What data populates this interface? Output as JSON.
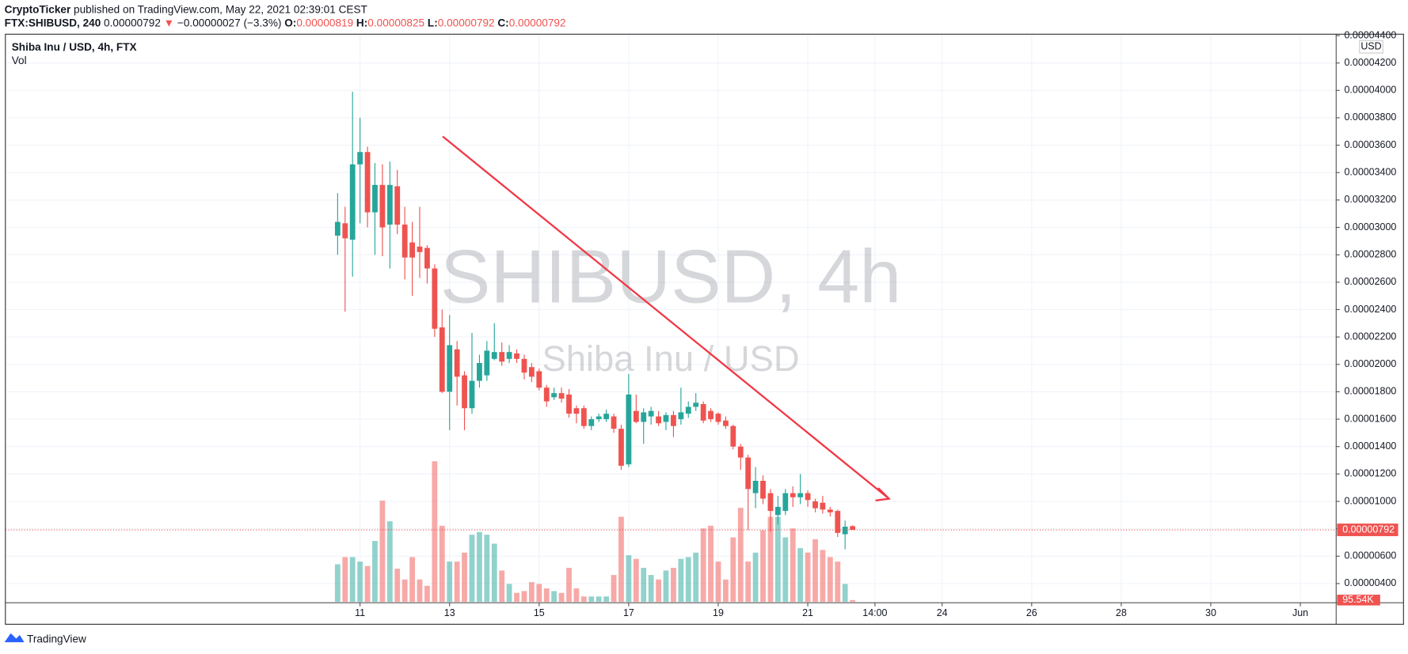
{
  "header": {
    "author": "CryptoTicker",
    "published": "published on TradingView.com, May 22, 2021 02:39:01 CEST",
    "symbol": "FTX:SHIBUSD, 240",
    "price": "0.00000792",
    "change_arrow": "▼",
    "change": "−0.00000027 (−3.3%)",
    "open_label": "O:",
    "open": "0.00000819",
    "high_label": "H:",
    "high": "0.00000825",
    "low_label": "L:",
    "low": "0.00000792",
    "close_label": "C:",
    "close": "0.00000792"
  },
  "footer": {
    "brand": "TradingView"
  },
  "chart_data": {
    "type": "candlestick",
    "legend_title": "Shiba Inu / USD, 4h, FTX",
    "volume_title": "Vol",
    "watermark": "SHIBUSD, 4h",
    "watermark_subtitle": "Shiba Inu / USD",
    "currency": "USD",
    "up_color": "#26a69a",
    "down_color": "#ef5350",
    "grid": true,
    "x": [
      10.5,
      10.667,
      10.833,
      11,
      11.167,
      11.333,
      11.5,
      11.667,
      11.833,
      12,
      12.167,
      12.333,
      12.5,
      12.667,
      12.833,
      13,
      13.167,
      13.333,
      13.5,
      13.667,
      13.833,
      14,
      14.167,
      14.333,
      14.5,
      14.667,
      14.833,
      15,
      15.167,
      15.333,
      15.5,
      15.667,
      15.833,
      16,
      16.167,
      16.333,
      16.5,
      16.667,
      16.833,
      17,
      17.167,
      17.333,
      17.5,
      17.667,
      17.833,
      18,
      18.167,
      18.333,
      18.5,
      18.667,
      18.833,
      19,
      19.167,
      19.333,
      19.5,
      19.667,
      19.833,
      20,
      20.167,
      20.333,
      20.5,
      20.667,
      20.833,
      21,
      21.167,
      21.333,
      21.5,
      21.667,
      21.833,
      22
    ],
    "open": [
      2.94e-05,
      3.03e-05,
      2.91e-05,
      3.46e-05,
      3.55e-05,
      3.11e-05,
      3.31e-05,
      3.02e-05,
      3.3e-05,
      3.02e-05,
      2.89e-05,
      2.86e-05,
      2.85e-05,
      2.7e-05,
      2.27e-05,
      1.8e-05,
      2.11e-05,
      1.92e-05,
      1.68e-05,
      1.88e-05,
      1.92e-05,
      2.04e-05,
      2.09e-05,
      2.04e-05,
      2.08e-05,
      2.04e-05,
      1.98e-05,
      1.95e-05,
      1.83e-05,
      1.76e-05,
      1.79e-05,
      1.78e-05,
      1.68e-05,
      1.68e-05,
      1.55e-05,
      1.6e-05,
      1.6e-05,
      1.62e-05,
      1.53e-05,
      1.27e-05,
      1.66e-05,
      1.58e-05,
      1.62e-05,
      1.62e-05,
      1.58e-05,
      1.63e-05,
      1.6e-05,
      1.64e-05,
      1.69e-05,
      1.71e-05,
      1.66e-05,
      1.64e-05,
      1.59e-05,
      1.55e-05,
      1.4e-05,
      1.32e-05,
      1.06e-05,
      1.15e-05,
      1.06e-05,
      9e-06,
      9.3e-06,
      1.06e-05,
      1.03e-05,
      1.06e-05,
      1e-05,
      9.9e-06,
      9.4e-06,
      9.3e-06,
      7.6e-06,
      8.19e-06
    ],
    "high": [
      3.25e-05,
      3.15e-05,
      3.99e-05,
      3.8e-05,
      3.59e-05,
      3.47e-05,
      3.46e-05,
      3.48e-05,
      3.42e-05,
      3.15e-05,
      3.04e-05,
      3.15e-05,
      2.87e-05,
      2.73e-05,
      2.4e-05,
      2.36e-05,
      2.17e-05,
      1.95e-05,
      2.23e-05,
      2.07e-05,
      2.17e-05,
      2.3e-05,
      2.16e-05,
      2.14e-05,
      2.11e-05,
      2.07e-05,
      2.01e-05,
      1.97e-05,
      1.85e-05,
      1.83e-05,
      1.83e-05,
      1.82e-05,
      1.7e-05,
      1.7e-05,
      1.62e-05,
      1.64e-05,
      1.67e-05,
      1.64e-05,
      1.56e-05,
      1.93e-05,
      1.78e-05,
      1.68e-05,
      1.69e-05,
      1.66e-05,
      1.65e-05,
      1.66e-05,
      1.83e-05,
      1.73e-05,
      1.79e-05,
      1.73e-05,
      1.68e-05,
      1.65e-05,
      1.62e-05,
      1.56e-05,
      1.42e-05,
      1.34e-05,
      1.25e-05,
      1.19e-05,
      1.09e-05,
      1.04e-05,
      1.09e-05,
      1.11e-05,
      1.2e-05,
      1.08e-05,
      1.02e-05,
      1.04e-05,
      9.6e-06,
      9.4e-06,
      8.6e-06,
      8.25e-06
    ],
    "low": [
      2.8e-05,
      2.385e-05,
      2.64e-05,
      3.03e-05,
      3e-05,
      2.8e-05,
      2.79e-05,
      2.7e-05,
      2.95e-05,
      2.62e-05,
      2.5e-05,
      2.63e-05,
      2.59e-05,
      2.2e-05,
      1.79e-05,
      1.52e-05,
      1.7e-05,
      1.52e-05,
      1.64e-05,
      1.83e-05,
      1.88e-05,
      2.03e-05,
      1.99e-05,
      2.01e-05,
      2.01e-05,
      1.89e-05,
      1.87e-05,
      1.81e-05,
      1.69e-05,
      1.74e-05,
      1.72e-05,
      1.61e-05,
      1.57e-05,
      1.53e-05,
      1.52e-05,
      1.58e-05,
      1.58e-05,
      1.5e-05,
      1.23e-05,
      1.25e-05,
      1.57e-05,
      1.42e-05,
      1.56e-05,
      1.55e-05,
      1.52e-05,
      1.47e-05,
      1.56e-05,
      1.61e-05,
      1.66e-05,
      1.57e-05,
      1.58e-05,
      1.56e-05,
      1.53e-05,
      1.38e-05,
      1.23e-05,
      7.9e-06,
      9.5e-06,
      9.8e-06,
      7.8e-06,
      8.3e-06,
      9e-06,
      9.6e-06,
      9.8e-06,
      9.6e-06,
      9.2e-06,
      9.1e-06,
      8.9e-06,
      7.4e-06,
      6.5e-06,
      7.92e-06
    ],
    "close": [
      3.04e-05,
      2.92e-05,
      3.46e-05,
      3.55e-05,
      3.11e-05,
      3.31e-05,
      3e-05,
      3.31e-05,
      3.02e-05,
      2.78e-05,
      2.78e-05,
      2.82e-05,
      2.7e-05,
      2.26e-05,
      1.8e-05,
      2.14e-05,
      1.91e-05,
      1.68e-05,
      1.88e-05,
      2.01e-05,
      2.1e-05,
      2.09e-05,
      2.02e-05,
      2.09e-05,
      2.04e-05,
      1.94e-05,
      1.91e-05,
      1.83e-05,
      1.73e-05,
      1.79e-05,
      1.75e-05,
      1.64e-05,
      1.64e-05,
      1.55e-05,
      1.6e-05,
      1.62e-05,
      1.64e-05,
      1.53e-05,
      1.26e-05,
      1.78e-05,
      1.58e-05,
      1.65e-05,
      1.66e-05,
      1.57e-05,
      1.63e-05,
      1.55e-05,
      1.65e-05,
      1.69e-05,
      1.72e-05,
      1.59e-05,
      1.6e-05,
      1.58e-05,
      1.55e-05,
      1.4e-05,
      1.32e-05,
      1.09e-05,
      1.15e-05,
      1.02e-05,
      9.3e-06,
      9.6e-06,
      1.06e-05,
      1.03e-05,
      1.06e-05,
      1.01e-05,
      9.5e-06,
      9.4e-06,
      9.2e-06,
      7.7e-06,
      8.15e-06,
      7.92e-06
    ],
    "volume": [
      2016000,
      2400000,
      2400000,
      2160000,
      1920000,
      3264000,
      5424000,
      4320000,
      1776000,
      1200000,
      2400000,
      1200000,
      864000,
      7536000,
      4080000,
      2160000,
      2160000,
      2640000,
      3600000,
      3744000,
      3600000,
      3120000,
      1680000,
      960000,
      480000,
      576000,
      1056000,
      960000,
      720000,
      576000,
      480000,
      1824000,
      720000,
      288000,
      288000,
      288000,
      288000,
      1440000,
      4560000,
      2496000,
      2304000,
      1824000,
      1440000,
      1200000,
      1680000,
      1824000,
      2304000,
      2400000,
      2640000,
      3936000,
      4080000,
      2160000,
      1200000,
      3456000,
      5040000,
      2160000,
      2640000,
      3840000,
      4560000,
      4560000,
      3456000,
      3936000,
      2880000,
      2640000,
      3360000,
      2784000,
      2400000,
      2160000,
      960000,
      95540
    ],
    "volume_label": {
      "value": 95540,
      "label": "95.54K"
    },
    "volume_lim": [
      0,
      10000000
    ],
    "last_price": {
      "value": 7.92e-06,
      "label": "0.00000792"
    },
    "xlim": [
      3.08,
      32.8
    ],
    "xticks": [
      11,
      13,
      15,
      17,
      19,
      21,
      {
        "value": 22.5,
        "label": "14:00"
      },
      24,
      26,
      28,
      30,
      {
        "value": 32,
        "label": "Jun"
      }
    ],
    "ylim": [
      2.6e-06,
      4.41e-05
    ],
    "yticks": [
      {
        "value": 4e-06,
        "label": "0.00000400"
      },
      {
        "value": 6e-06,
        "label": "0.00000600"
      },
      {
        "value": 8e-06,
        "label": "0.00000800"
      },
      {
        "value": 1e-05,
        "label": "0.00001000"
      },
      {
        "value": 1.2e-05,
        "label": "0.00001200"
      },
      {
        "value": 1.4e-05,
        "label": "0.00001400"
      },
      {
        "value": 1.6e-05,
        "label": "0.00001600"
      },
      {
        "value": 1.8e-05,
        "label": "0.00001800"
      },
      {
        "value": 2e-05,
        "label": "0.00002000"
      },
      {
        "value": 2.2e-05,
        "label": "0.00002200"
      },
      {
        "value": 2.4e-05,
        "label": "0.00002400"
      },
      {
        "value": 2.6e-05,
        "label": "0.00002600"
      },
      {
        "value": 2.8e-05,
        "label": "0.00002800"
      },
      {
        "value": 3e-05,
        "label": "0.00003000"
      },
      {
        "value": 3.2e-05,
        "label": "0.00003200"
      },
      {
        "value": 3.4e-05,
        "label": "0.00003400"
      },
      {
        "value": 3.6e-05,
        "label": "0.00003600"
      },
      {
        "value": 3.8e-05,
        "label": "0.00003800"
      },
      {
        "value": 4e-05,
        "label": "0.00004000"
      },
      {
        "value": 4.2e-05,
        "label": "0.00004200"
      },
      {
        "value": 4.4e-05,
        "label": "0.00004400"
      }
    ]
  }
}
